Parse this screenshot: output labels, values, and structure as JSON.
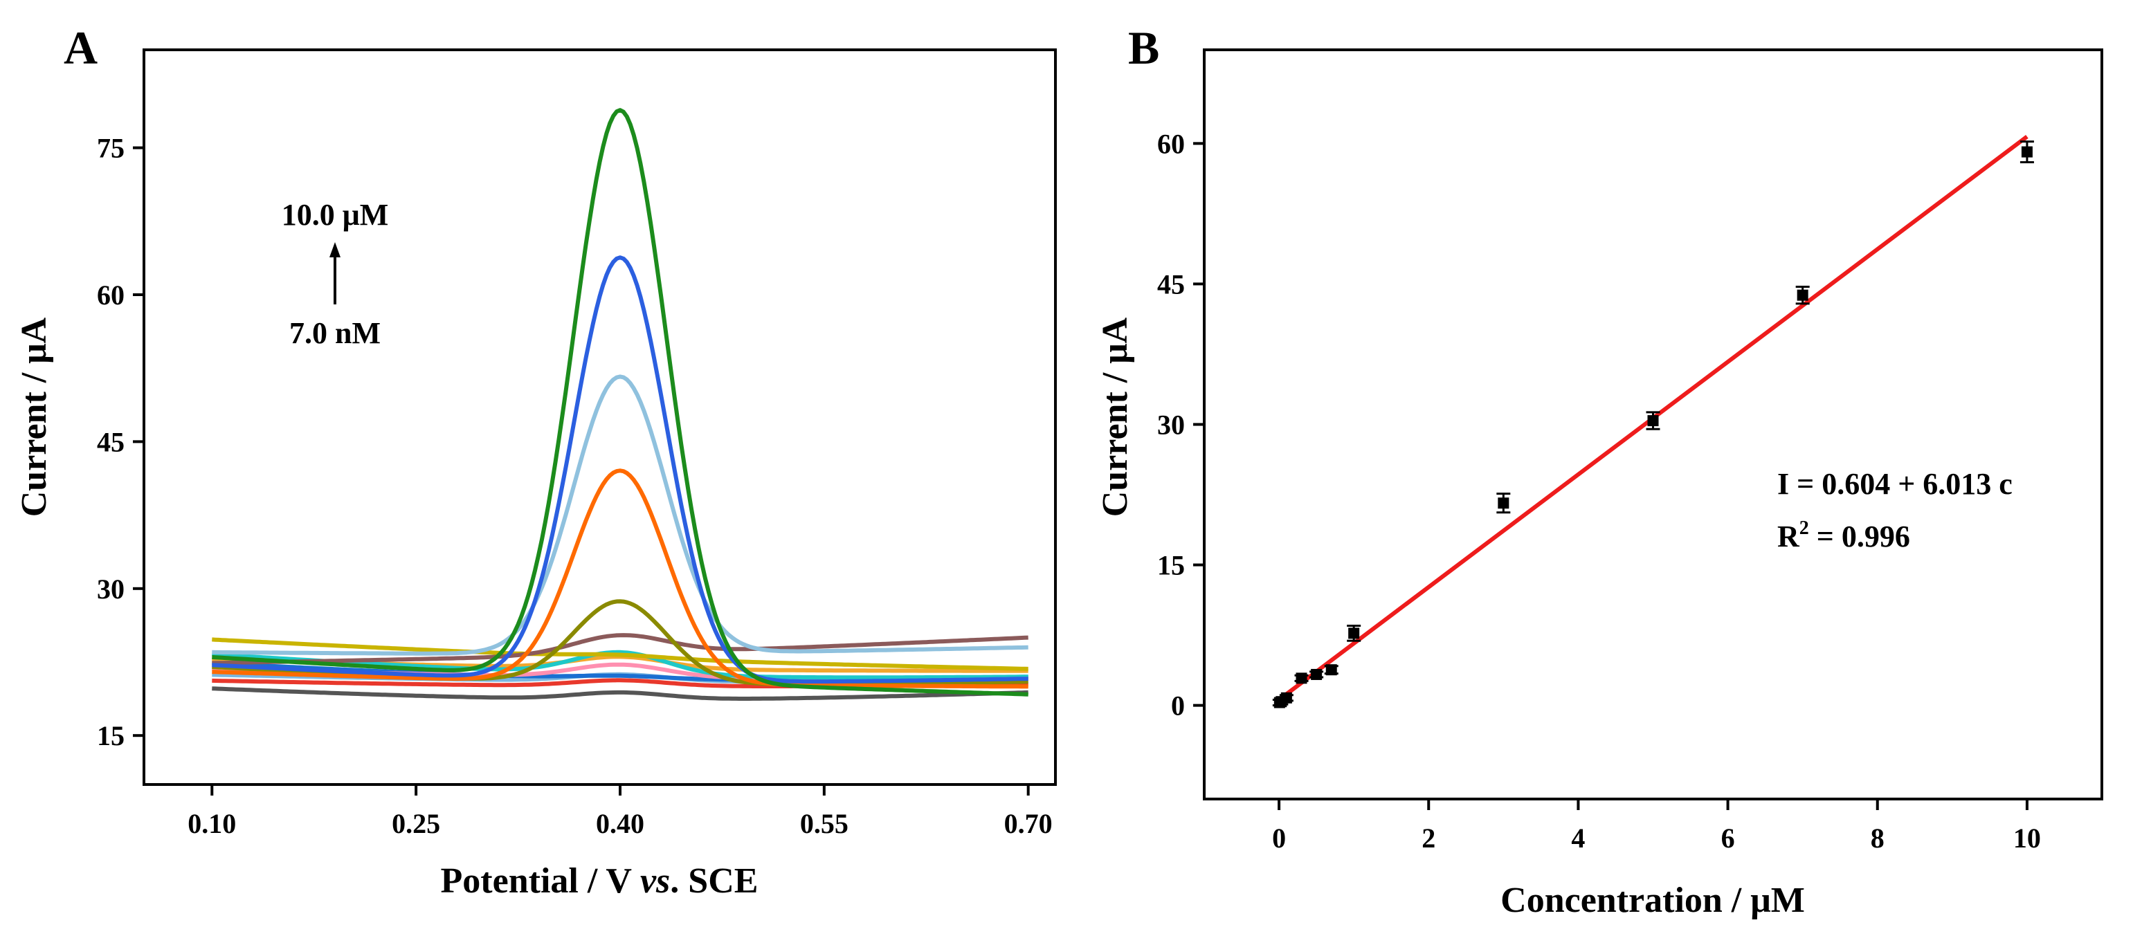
{
  "chart_data": [
    {
      "type": "line",
      "panel_label": "A",
      "xlabel_prefix": "Potential / V ",
      "xlabel_italic": "vs",
      "xlabel_suffix": ". SCE",
      "ylabel": "Current / μA",
      "xlim": [
        0.05,
        0.72
      ],
      "ylim": [
        10,
        85
      ],
      "xticks": [
        0.1,
        0.25,
        0.4,
        0.55,
        0.7
      ],
      "xtick_labels": [
        "0.10",
        "0.25",
        "0.40",
        "0.55",
        "0.70"
      ],
      "yticks": [
        15,
        30,
        45,
        60,
        75
      ],
      "ytick_labels": [
        "15",
        "30",
        "45",
        "60",
        "75"
      ],
      "grid": false,
      "annotation_top": "10.0 μM",
      "annotation_bottom": "7.0 nM",
      "peak_potential": 0.4,
      "series": [
        {
          "color": "#555555",
          "baseline_start": 19.8,
          "baseline_end": 19.4,
          "peak": 20.3
        },
        {
          "color": "#e8382c",
          "baseline_start": 20.6,
          "baseline_end": 20.2,
          "peak": 21.0
        },
        {
          "color": "#7ab6e0",
          "baseline_start": 21.2,
          "baseline_end": 20.6,
          "peak": 21.6
        },
        {
          "color": "#1a6fd1",
          "baseline_start": 22.4,
          "baseline_end": 21.0,
          "peak": 22.0
        },
        {
          "color": "#ff8fb0",
          "baseline_start": 21.8,
          "baseline_end": 20.8,
          "peak": 22.6
        },
        {
          "color": "#f2a72d",
          "baseline_start": 22.8,
          "baseline_end": 21.6,
          "peak": 23.4
        },
        {
          "color": "#1ec8c8",
          "baseline_start": 23.3,
          "baseline_end": 21.0,
          "peak": 24.4
        },
        {
          "color": "#c9b400",
          "baseline_start": 24.8,
          "baseline_end": 21.8,
          "peak": 23.6
        },
        {
          "color": "#8b5a5a",
          "baseline_start": 22.4,
          "baseline_end": 25.0,
          "peak": 25.6
        },
        {
          "color": "#8a8a00",
          "baseline_start": 22.0,
          "baseline_end": 20.5,
          "peak": 29.6
        },
        {
          "color": "#ff6a00",
          "baseline_start": 21.5,
          "baseline_end": 20.0,
          "peak": 42.4
        },
        {
          "color": "#8fc1de",
          "baseline_start": 23.5,
          "baseline_end": 24.0,
          "peak": 52.0
        },
        {
          "color": "#2b5fe0",
          "baseline_start": 22.2,
          "baseline_end": 20.8,
          "peak": 64.7
        },
        {
          "color": "#1c8c1c",
          "baseline_start": 23.0,
          "baseline_end": 19.2,
          "peak": 79.2
        }
      ]
    },
    {
      "type": "scatter",
      "panel_label": "B",
      "xlabel": "Concentration / μM",
      "ylabel": "Current / μA",
      "xlim": [
        -1,
        11
      ],
      "ylim": [
        -10,
        70
      ],
      "xticks": [
        0,
        2,
        4,
        6,
        8,
        10
      ],
      "xtick_labels": [
        "0",
        "2",
        "4",
        "6",
        "8",
        "10"
      ],
      "yticks": [
        0,
        15,
        30,
        45,
        60
      ],
      "ytick_labels": [
        "0",
        "15",
        "30",
        "45",
        "60"
      ],
      "grid": false,
      "points": [
        {
          "x": 0.007,
          "y": 0.3,
          "err": 0.3
        },
        {
          "x": 0.03,
          "y": 0.4,
          "err": 0.3
        },
        {
          "x": 0.1,
          "y": 0.8,
          "err": 0.3
        },
        {
          "x": 0.3,
          "y": 2.9,
          "err": 0.3
        },
        {
          "x": 0.5,
          "y": 3.3,
          "err": 0.3
        },
        {
          "x": 0.7,
          "y": 3.8,
          "err": 0.4
        },
        {
          "x": 1.0,
          "y": 7.7,
          "err": 0.8
        },
        {
          "x": 3.0,
          "y": 21.6,
          "err": 1.0
        },
        {
          "x": 5.0,
          "y": 30.4,
          "err": 0.9
        },
        {
          "x": 7.0,
          "y": 43.8,
          "err": 0.9
        },
        {
          "x": 10.0,
          "y": 59.1,
          "err": 1.1
        }
      ],
      "fit": {
        "intercept": 0.604,
        "slope": 6.013,
        "x_range": [
          0,
          10
        ],
        "color": "#ee1c1c"
      },
      "equation_text": "I = 0.604 + 6.013 c",
      "r2_prefix": "R",
      "r2_sup": "2",
      "r2_suffix": " = 0.996"
    }
  ]
}
